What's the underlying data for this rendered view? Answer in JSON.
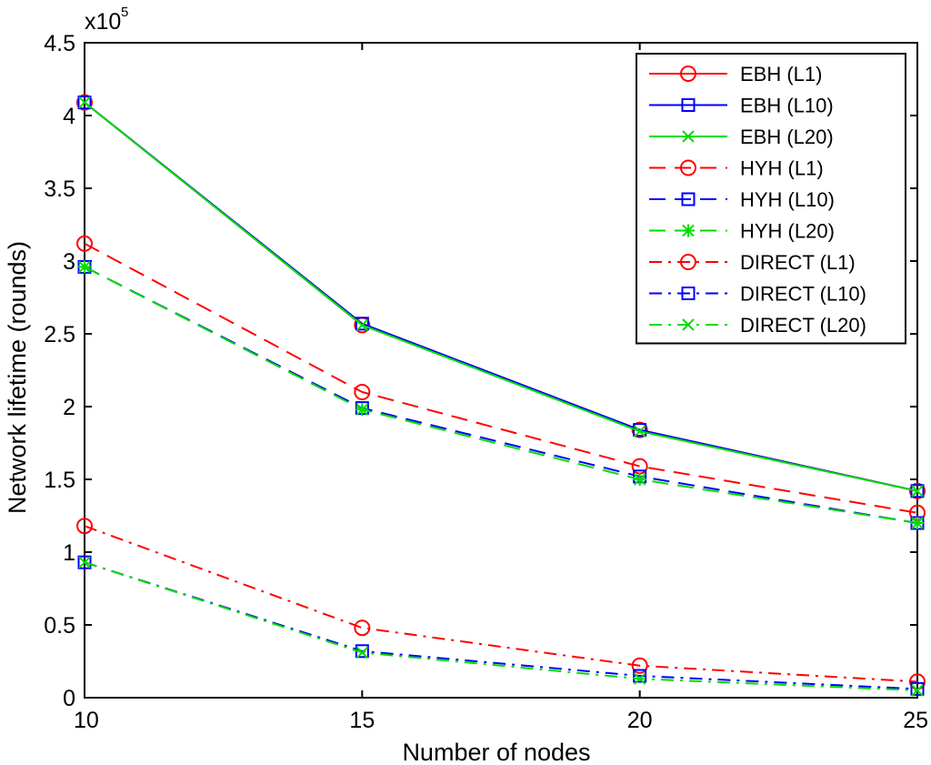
{
  "chart_data": {
    "type": "line",
    "title": "",
    "xlabel": "Number of nodes",
    "ylabel": "Network lifetime (rounds)",
    "y_exponent_label": "x10",
    "y_exponent_power": "5",
    "x": [
      10,
      15,
      20,
      25
    ],
    "xlim": [
      10,
      25
    ],
    "ylim": [
      0,
      4.5
    ],
    "x_ticks": [
      "10",
      "15",
      "20",
      "25"
    ],
    "y_ticks": [
      "0",
      "0.5",
      "1",
      "1.5",
      "2",
      "2.5",
      "3",
      "3.5",
      "4",
      "4.5"
    ],
    "grid": false,
    "legend_position": "top-right",
    "series": [
      {
        "name": "EBH (L1)",
        "values": [
          4.09,
          2.56,
          1.84,
          1.42
        ],
        "color": "#ff0000",
        "dash": "solid",
        "marker": "circle"
      },
      {
        "name": "EBH (L10)",
        "values": [
          4.09,
          2.57,
          1.84,
          1.42
        ],
        "color": "#0000ff",
        "dash": "solid",
        "marker": "square"
      },
      {
        "name": "EBH (L20)",
        "values": [
          4.09,
          2.56,
          1.83,
          1.42
        ],
        "color": "#00dd00",
        "dash": "solid",
        "marker": "x"
      },
      {
        "name": "HYH (L1)",
        "values": [
          3.12,
          2.1,
          1.59,
          1.27
        ],
        "color": "#ff0000",
        "dash": "dashed",
        "marker": "circle"
      },
      {
        "name": "HYH (L10)",
        "values": [
          2.96,
          1.99,
          1.52,
          1.2
        ],
        "color": "#0000ff",
        "dash": "dashed",
        "marker": "square"
      },
      {
        "name": "HYH (L20)",
        "values": [
          2.96,
          1.98,
          1.5,
          1.2
        ],
        "color": "#00dd00",
        "dash": "dashed",
        "marker": "star"
      },
      {
        "name": "DIRECT (L1)",
        "values": [
          1.18,
          0.48,
          0.22,
          0.11
        ],
        "color": "#ff0000",
        "dash": "dashdot",
        "marker": "circle"
      },
      {
        "name": "DIRECT (L10)",
        "values": [
          0.93,
          0.32,
          0.15,
          0.06
        ],
        "color": "#0000ff",
        "dash": "dashdot",
        "marker": "square"
      },
      {
        "name": "DIRECT (L20)",
        "values": [
          0.93,
          0.31,
          0.13,
          0.05
        ],
        "color": "#00dd00",
        "dash": "dashdot",
        "marker": "x"
      }
    ]
  }
}
